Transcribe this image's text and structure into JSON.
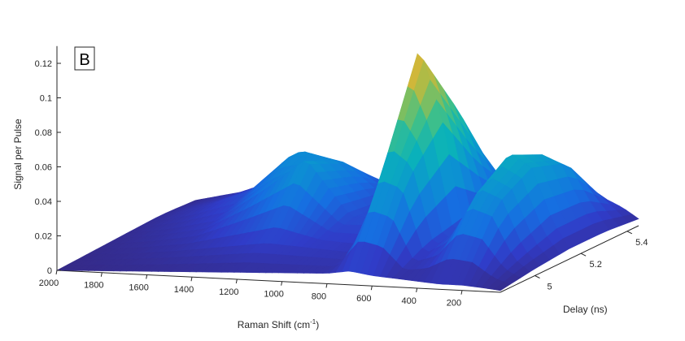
{
  "panel_label": "B",
  "chart_data": {
    "type": "surface",
    "title": "",
    "xlabel": "Raman Shift (cm",
    "xlabel_sup": "-1",
    "xlabel_end": ")",
    "ylabel": "Delay (ns)",
    "zlabel": "Signal per Pulse",
    "x_ticks": [
      2000,
      1800,
      1600,
      1400,
      1200,
      1000,
      800,
      600,
      400,
      200
    ],
    "y_ticks": [
      5,
      5.2,
      5.4
    ],
    "z_ticks": [
      0,
      0.02,
      0.04,
      0.06,
      0.08,
      0.1,
      0.12
    ],
    "xlim": [
      2000,
      30
    ],
    "ylim": [
      4.85,
      5.45
    ],
    "zlim": [
      0,
      0.13
    ],
    "colormap": "parula",
    "x_raman_shift": [
      2000,
      1800,
      1600,
      1400,
      1200,
      1000,
      800,
      700,
      600,
      500,
      400,
      300,
      200,
      100,
      30
    ],
    "y_delay": [
      4.85,
      5.0,
      5.15,
      5.3,
      5.45
    ],
    "signal": [
      [
        0.0,
        0.001,
        0.002,
        0.003,
        0.004,
        0.005,
        0.006,
        0.008,
        0.006,
        0.005,
        0.004,
        0.003,
        0.003,
        0.002,
        0.001
      ],
      [
        0.001,
        0.003,
        0.006,
        0.01,
        0.014,
        0.012,
        0.01,
        0.06,
        0.055,
        0.012,
        0.02,
        0.045,
        0.04,
        0.012,
        0.004
      ],
      [
        0.002,
        0.006,
        0.012,
        0.03,
        0.05,
        0.018,
        0.02,
        0.12,
        0.08,
        0.015,
        0.03,
        0.06,
        0.052,
        0.02,
        0.006
      ],
      [
        0.003,
        0.01,
        0.02,
        0.045,
        0.04,
        0.016,
        0.015,
        0.08,
        0.045,
        0.01,
        0.025,
        0.05,
        0.045,
        0.02,
        0.006
      ],
      [
        0.002,
        0.008,
        0.018,
        0.03,
        0.02,
        0.012,
        0.012,
        0.03,
        0.02,
        0.008,
        0.012,
        0.018,
        0.016,
        0.01,
        0.004
      ]
    ]
  }
}
